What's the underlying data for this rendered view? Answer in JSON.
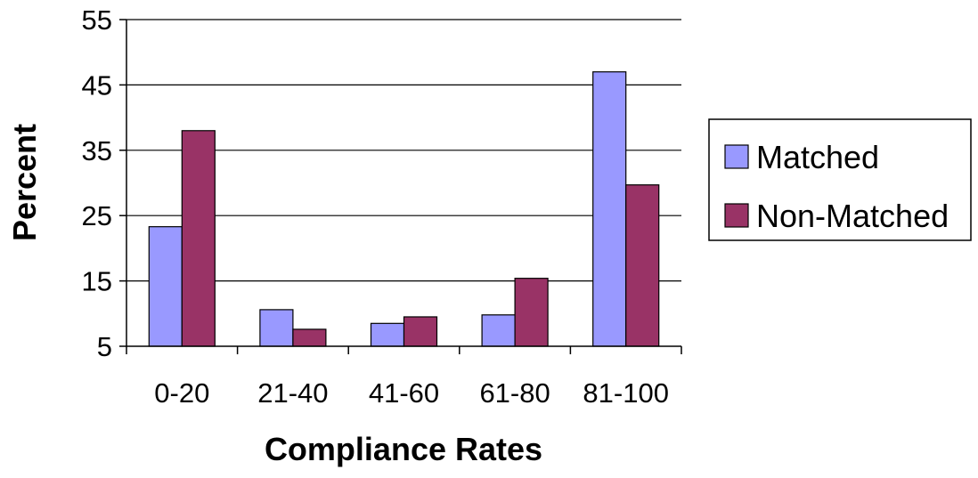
{
  "chart_data": {
    "type": "bar",
    "title": "",
    "xlabel": "Compliance Rates",
    "ylabel": "Percent",
    "categories": [
      "0-20",
      "21-40",
      "41-60",
      "61-80",
      "81-100"
    ],
    "series": [
      {
        "name": "Matched",
        "color": "#9999ff",
        "values": [
          23.3,
          10.6,
          8.5,
          9.8,
          47
        ]
      },
      {
        "name": "Non-Matched",
        "color": "#993366",
        "values": [
          38,
          7.6,
          9.5,
          15.4,
          29.7
        ]
      }
    ],
    "ylim": [
      5,
      55
    ],
    "yticks": [
      "5",
      "15",
      "25",
      "35",
      "45",
      "55"
    ],
    "grid": true,
    "legend": "right"
  }
}
